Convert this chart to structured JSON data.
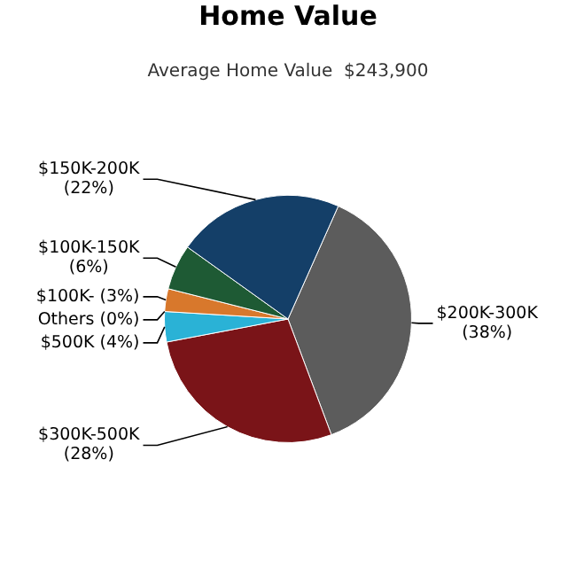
{
  "chart_data": {
    "type": "pie",
    "title": "Home Value",
    "subtitle": "Average Home Value  $243,900",
    "categories": [
      "$200K-300K",
      "$300K-500K",
      "$500K",
      "Others",
      "$100K-",
      "$100K-150K",
      "$150K-200K"
    ],
    "values": [
      38,
      28,
      4,
      0,
      3,
      6,
      22
    ],
    "value_labels": [
      "(38%)",
      "(28%)",
      "(4%)",
      "(0%)",
      "(3%)",
      "(6%)",
      "(22%)"
    ],
    "colors": [
      "#5c5c5c",
      "#7a1418",
      "#2ab2d6",
      "#9a9a9a",
      "#d8782c",
      "#1e5a34",
      "#143f68"
    ]
  }
}
